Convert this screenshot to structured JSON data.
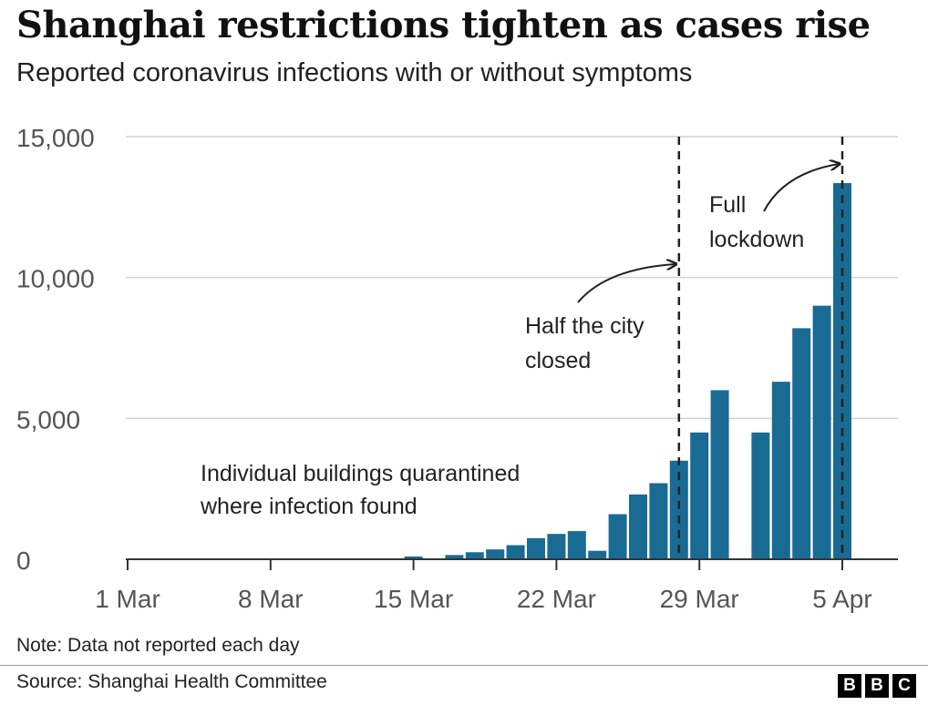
{
  "chart_data": {
    "type": "bar",
    "title": "Shanghai restrictions tighten as cases rise",
    "subtitle": "Reported coronavirus infections with or without symptoms",
    "xlabel": "",
    "ylabel": "",
    "ylim": [
      0,
      15000
    ],
    "yticks": [
      0,
      5000,
      10000,
      15000
    ],
    "ytick_labels": [
      "0",
      "5,000",
      "10,000",
      "15,000"
    ],
    "xticks": [
      "1 Mar",
      "8 Mar",
      "15 Mar",
      "22 Mar",
      "29 Mar",
      "5 Apr"
    ],
    "grid": true,
    "color": "#1a6b94",
    "series": [
      {
        "categories": [
          "15 Mar",
          "17 Mar",
          "18 Mar",
          "19 Mar",
          "20 Mar",
          "21 Mar",
          "22 Mar",
          "23 Mar",
          "24 Mar",
          "25 Mar",
          "26 Mar",
          "27 Mar",
          "28 Mar",
          "29 Mar",
          "30 Mar",
          "1 Apr",
          "2 Apr",
          "3 Apr",
          "4 Apr",
          "5 Apr"
        ],
        "values": [
          100,
          150,
          250,
          350,
          500,
          750,
          900,
          1000,
          300,
          1600,
          2300,
          2700,
          3500,
          4500,
          6000,
          4500,
          6300,
          8200,
          9000,
          13350
        ]
      }
    ],
    "events": [
      {
        "date": "28 Mar",
        "label_lines": [
          "Half the city",
          "closed"
        ]
      },
      {
        "date": "5 Apr",
        "label_lines": [
          "Full",
          "lockdown"
        ]
      }
    ],
    "annotations": [
      {
        "label_lines": [
          "Individual buildings quarantined",
          "where infection found"
        ]
      }
    ]
  },
  "note": "Note: Data not reported each day",
  "source": "Source: Shanghai Health Committee",
  "logo_letters": [
    "B",
    "B",
    "C"
  ]
}
